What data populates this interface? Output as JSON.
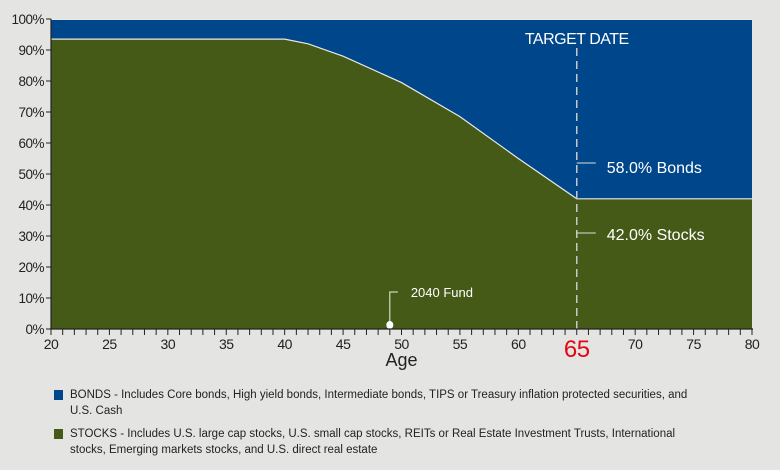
{
  "chart_data": {
    "type": "area",
    "xlabel": "Age",
    "ylabel": "",
    "xlim": [
      20,
      80
    ],
    "ylim": [
      0,
      100
    ],
    "x_ticks": [
      20,
      25,
      30,
      35,
      40,
      45,
      50,
      55,
      60,
      65,
      70,
      75,
      80
    ],
    "x_tick_labels": [
      "20",
      "25",
      "30",
      "35",
      "40",
      "45",
      "50",
      "55",
      "60",
      "65",
      "70",
      "75",
      "80"
    ],
    "y_ticks": [
      0,
      10,
      20,
      30,
      40,
      50,
      60,
      70,
      80,
      90,
      100
    ],
    "y_tick_labels": [
      "0%",
      "10%",
      "20%",
      "30%",
      "40%",
      "50%",
      "60%",
      "70%",
      "80%",
      "90%",
      "100%"
    ],
    "highlight_x_label": "65",
    "highlight_color": "#e30613",
    "stacked": true,
    "series": [
      {
        "name": "STOCKS",
        "color": "#445a16",
        "x": [
          20,
          40,
          42,
          45,
          50,
          55,
          60,
          65,
          80
        ],
        "y": [
          93.5,
          93.5,
          92,
          88,
          79.5,
          68.5,
          55,
          42,
          42
        ]
      },
      {
        "name": "BONDS",
        "color": "#00468b",
        "x": [
          20,
          40,
          42,
          45,
          50,
          55,
          60,
          65,
          80
        ],
        "y": [
          6.5,
          6.5,
          8,
          12,
          20.5,
          31.5,
          45,
          58,
          58
        ]
      }
    ],
    "annotations": {
      "target_date": {
        "label": "TARGET DATE",
        "x": 65
      },
      "bonds_label": "58.0% Bonds",
      "stocks_label": "42.0% Stocks",
      "fund": {
        "label": "2040 Fund",
        "x": 49,
        "y": 0
      }
    },
    "legend": [
      {
        "label": "BONDS - Includes Core bonds, High yield bonds, Intermediate bonds, TIPS or Treasury inflation protected securities, and U.S. Cash",
        "color": "#00468b"
      },
      {
        "label": "STOCKS - Includes U.S. large cap stocks, U.S. small cap stocks, REITs or Real Estate Investment Trusts, International stocks, Emerging markets stocks, and U.S. direct real estate",
        "color": "#445a16"
      }
    ],
    "legend_position": "bottom",
    "grid": false
  }
}
